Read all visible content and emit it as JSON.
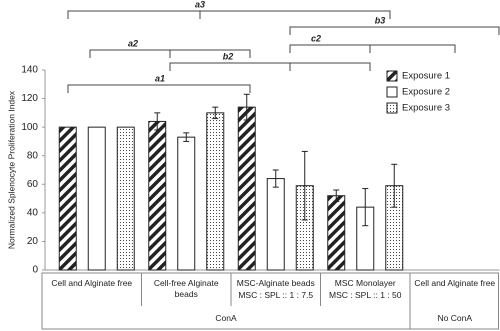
{
  "chart_data": {
    "type": "bar",
    "y_label": "Normalized Splenocyte  Proliferation Index",
    "categories": [
      "Cell and Alginate free",
      "Cell-free Alginate beads",
      "MSC-Alginate beads",
      "MSC Monolayer",
      "Cell and Alginate free"
    ],
    "category_ratios": [
      null,
      null,
      "MSC : SPL :: 1 : 7.5",
      "MSC : SPL :: 1 : 50",
      null
    ],
    "groups": [
      "ConA",
      "No ConA"
    ],
    "series": [
      {
        "name": "Exposure 1",
        "color": "#222222",
        "pattern": "hatch",
        "values": [
          100,
          104,
          114,
          52,
          null
        ],
        "errors": [
          0,
          6,
          9,
          4,
          null
        ]
      },
      {
        "name": "Exposure 2",
        "color": "#222222",
        "pattern": "none",
        "values": [
          100,
          93,
          64,
          44,
          null
        ],
        "errors": [
          0,
          3,
          6,
          13,
          null
        ]
      },
      {
        "name": "Exposure 3",
        "color": "#222222",
        "pattern": "dots",
        "values": [
          100,
          110,
          59,
          59,
          null
        ],
        "errors": [
          0,
          4,
          24,
          15,
          null
        ]
      }
    ],
    "annotations": [
      "a1",
      "a2",
      "a3",
      "b2",
      "b3",
      "c2"
    ],
    "ylim": [
      0,
      140
    ],
    "yticks": [
      0,
      20,
      40,
      60,
      80,
      100,
      120,
      140
    ],
    "grid": false,
    "legend": "upper right"
  }
}
